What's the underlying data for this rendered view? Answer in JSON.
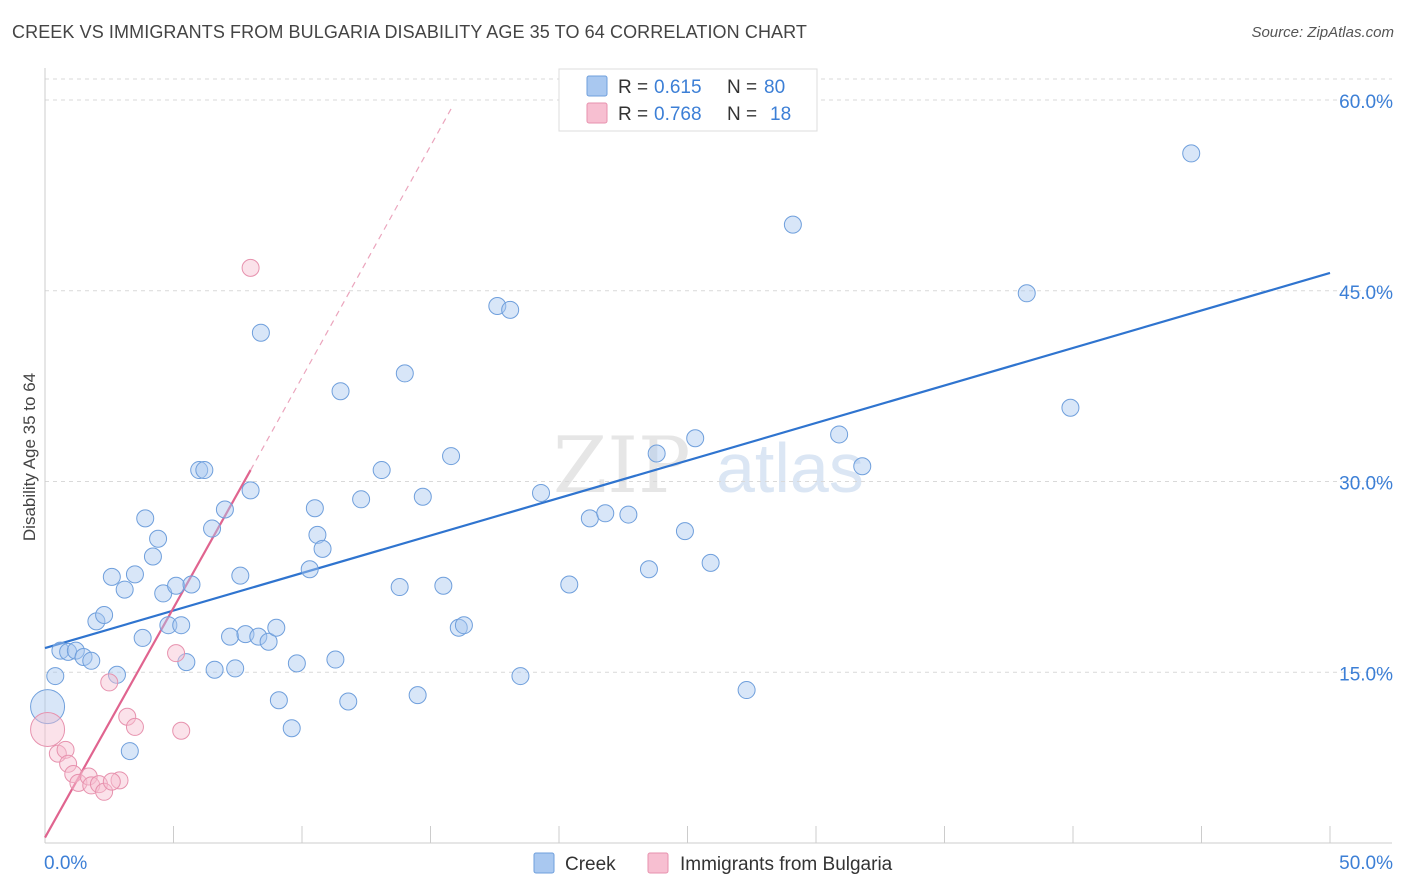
{
  "header": {
    "title": "CREEK VS IMMIGRANTS FROM BULGARIA DISABILITY AGE 35 TO 64 CORRELATION CHART",
    "source": "Source: ZipAtlas.com"
  },
  "watermark": {
    "zip": "ZIP",
    "atlas": "atlas"
  },
  "legend_top": [
    {
      "r_label": "R =",
      "r_value": "0.615",
      "n_label": "N =",
      "n_value": "80",
      "color": "#a9c8f0",
      "stroke": "#6f9fdc"
    },
    {
      "r_label": "R =",
      "r_value": "0.768",
      "n_label": "N =",
      "n_value": "18",
      "color": "#f7bfd1",
      "stroke": "#e792ae"
    }
  ],
  "legend_bottom": [
    {
      "label": "Creek",
      "color": "#a9c8f0",
      "stroke": "#6f9fdc"
    },
    {
      "label": "Immigrants from Bulgaria",
      "color": "#f7bfd1",
      "stroke": "#e792ae"
    }
  ],
  "chart_data": {
    "type": "scatter",
    "title": "CREEK VS IMMIGRANTS FROM BULGARIA DISABILITY AGE 35 TO 64 CORRELATION CHART",
    "xlabel": "",
    "ylabel": "Disability Age 35 to 64",
    "xlim": [
      0,
      50
    ],
    "ylim": [
      0,
      60
    ],
    "x_tick_labels": [
      "0.0%",
      "50.0%"
    ],
    "y_ticks": [
      15,
      30,
      45,
      60
    ],
    "y_tick_labels": [
      "15.0%",
      "30.0%",
      "45.0%",
      "60.0%"
    ],
    "grid": true,
    "series": [
      {
        "name": "Creek",
        "color": "#7aaae6",
        "line_color": "#2f74cf",
        "r": 0.615,
        "n": 80,
        "trend": {
          "x": [
            0,
            50
          ],
          "y": [
            16.9,
            46.4
          ]
        },
        "points": [
          {
            "x": 0.1,
            "y": 12.3,
            "big": true
          },
          {
            "x": 0.4,
            "y": 14.7
          },
          {
            "x": 0.6,
            "y": 16.7
          },
          {
            "x": 0.9,
            "y": 16.6
          },
          {
            "x": 1.2,
            "y": 16.7
          },
          {
            "x": 1.5,
            "y": 16.2
          },
          {
            "x": 1.8,
            "y": 15.9
          },
          {
            "x": 2.0,
            "y": 19.0
          },
          {
            "x": 2.3,
            "y": 19.5
          },
          {
            "x": 2.6,
            "y": 22.5
          },
          {
            "x": 2.8,
            "y": 14.8
          },
          {
            "x": 3.1,
            "y": 21.5
          },
          {
            "x": 3.3,
            "y": 8.8
          },
          {
            "x": 3.5,
            "y": 22.7
          },
          {
            "x": 3.8,
            "y": 17.7
          },
          {
            "x": 3.9,
            "y": 27.1
          },
          {
            "x": 4.2,
            "y": 24.1
          },
          {
            "x": 4.4,
            "y": 25.5
          },
          {
            "x": 4.6,
            "y": 21.2
          },
          {
            "x": 4.8,
            "y": 18.7
          },
          {
            "x": 5.1,
            "y": 21.8
          },
          {
            "x": 5.3,
            "y": 18.7
          },
          {
            "x": 5.5,
            "y": 15.8
          },
          {
            "x": 5.7,
            "y": 21.9
          },
          {
            "x": 6.0,
            "y": 30.9
          },
          {
            "x": 6.2,
            "y": 30.9
          },
          {
            "x": 6.5,
            "y": 26.3
          },
          {
            "x": 6.6,
            "y": 15.2
          },
          {
            "x": 7.0,
            "y": 27.8
          },
          {
            "x": 7.2,
            "y": 17.8
          },
          {
            "x": 7.4,
            "y": 15.3
          },
          {
            "x": 7.6,
            "y": 22.6
          },
          {
            "x": 7.8,
            "y": 18.0
          },
          {
            "x": 8.0,
            "y": 29.3
          },
          {
            "x": 8.3,
            "y": 17.8
          },
          {
            "x": 8.4,
            "y": 41.7
          },
          {
            "x": 8.7,
            "y": 17.4
          },
          {
            "x": 9.0,
            "y": 18.5
          },
          {
            "x": 9.1,
            "y": 12.8
          },
          {
            "x": 9.6,
            "y": 10.6
          },
          {
            "x": 9.8,
            "y": 15.7
          },
          {
            "x": 10.3,
            "y": 23.1
          },
          {
            "x": 10.5,
            "y": 27.9
          },
          {
            "x": 10.6,
            "y": 25.8
          },
          {
            "x": 10.8,
            "y": 24.7
          },
          {
            "x": 11.3,
            "y": 16.0
          },
          {
            "x": 11.5,
            "y": 37.1
          },
          {
            "x": 11.8,
            "y": 12.7
          },
          {
            "x": 12.3,
            "y": 28.6
          },
          {
            "x": 13.1,
            "y": 30.9
          },
          {
            "x": 13.8,
            "y": 21.7
          },
          {
            "x": 14.0,
            "y": 38.5
          },
          {
            "x": 14.5,
            "y": 13.2
          },
          {
            "x": 14.7,
            "y": 28.8
          },
          {
            "x": 15.5,
            "y": 21.8
          },
          {
            "x": 15.8,
            "y": 32.0
          },
          {
            "x": 16.1,
            "y": 18.5
          },
          {
            "x": 16.3,
            "y": 18.7
          },
          {
            "x": 17.6,
            "y": 43.8
          },
          {
            "x": 18.1,
            "y": 43.5
          },
          {
            "x": 18.5,
            "y": 14.7
          },
          {
            "x": 19.3,
            "y": 29.1
          },
          {
            "x": 20.4,
            "y": 21.9
          },
          {
            "x": 21.2,
            "y": 27.1
          },
          {
            "x": 21.8,
            "y": 27.5
          },
          {
            "x": 22.7,
            "y": 27.4
          },
          {
            "x": 23.5,
            "y": 23.1
          },
          {
            "x": 23.8,
            "y": 32.2
          },
          {
            "x": 24.9,
            "y": 26.1
          },
          {
            "x": 25.3,
            "y": 33.4
          },
          {
            "x": 25.9,
            "y": 23.6
          },
          {
            "x": 27.3,
            "y": 13.6
          },
          {
            "x": 29.1,
            "y": 50.2
          },
          {
            "x": 30.9,
            "y": 33.7
          },
          {
            "x": 31.8,
            "y": 31.2
          },
          {
            "x": 38.2,
            "y": 44.8
          },
          {
            "x": 39.9,
            "y": 35.8
          },
          {
            "x": 44.6,
            "y": 55.8
          }
        ]
      },
      {
        "name": "Immigrants from Bulgaria",
        "color": "#f2a7c0",
        "line_color": "#e0648f",
        "r": 0.768,
        "n": 18,
        "trend": {
          "x": [
            0,
            8.0
          ],
          "y": [
            2.0,
            30.9
          ]
        },
        "trend_dashed": {
          "x": [
            8.0,
            15.8
          ],
          "y": [
            30.9,
            59.3
          ]
        },
        "points": [
          {
            "x": 0.1,
            "y": 10.5,
            "big": true
          },
          {
            "x": 0.5,
            "y": 8.6
          },
          {
            "x": 0.8,
            "y": 8.9
          },
          {
            "x": 0.9,
            "y": 7.8
          },
          {
            "x": 1.1,
            "y": 7.0
          },
          {
            "x": 1.3,
            "y": 6.3
          },
          {
            "x": 1.7,
            "y": 6.8
          },
          {
            "x": 1.8,
            "y": 6.1
          },
          {
            "x": 2.1,
            "y": 6.2
          },
          {
            "x": 2.3,
            "y": 5.6
          },
          {
            "x": 2.5,
            "y": 14.2
          },
          {
            "x": 2.9,
            "y": 6.5
          },
          {
            "x": 3.2,
            "y": 11.5
          },
          {
            "x": 3.5,
            "y": 10.7
          },
          {
            "x": 5.1,
            "y": 16.5
          },
          {
            "x": 5.3,
            "y": 10.4
          },
          {
            "x": 8.0,
            "y": 46.8
          },
          {
            "x": 2.6,
            "y": 6.4
          }
        ]
      }
    ]
  }
}
